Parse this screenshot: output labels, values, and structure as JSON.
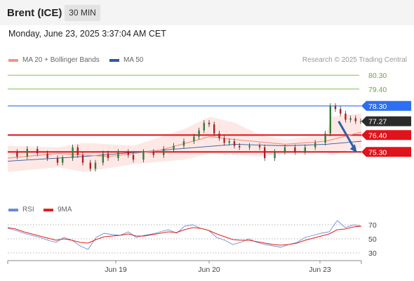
{
  "header": {
    "instrument": "Brent (ICE)",
    "timeframe": "30 MIN"
  },
  "timestamp": "Monday, June 23, 2025 3:37:04 AM CET",
  "credit": "Research © 2025 Trading Central",
  "legend": [
    {
      "label": "MA 20 + Bollinger Bands",
      "color": "#f4938a"
    },
    {
      "label": "MA 50",
      "color": "#2f5a9c"
    }
  ],
  "rsi_legend": [
    {
      "label": "RSI",
      "color": "#6a8ad8"
    },
    {
      "label": "9MA",
      "color": "#e0231b"
    }
  ],
  "chart_data": [
    {
      "type": "line",
      "title": "Brent (ICE) 30 MIN price",
      "x_ticks": [
        "Jun 19",
        "Jun 20",
        "Jun 23"
      ],
      "ylim": [
        73.0,
        81.0
      ],
      "current_price": {
        "value": "77.27",
        "color": "#2b2b2b"
      },
      "levels": [
        {
          "value": 80.3,
          "label": "80.30",
          "kind": "target",
          "color": "#7cbf4a"
        },
        {
          "value": 79.4,
          "label": "79.40",
          "kind": "target",
          "color": "#7cbf4a"
        },
        {
          "value": 78.3,
          "label": "78.30",
          "kind": "pivot",
          "color": "#2d6ff0"
        },
        {
          "value": 76.4,
          "label": "76.40",
          "kind": "support",
          "color": "#e0121b"
        },
        {
          "value": 75.3,
          "label": "75.30",
          "kind": "support",
          "color": "#e0121b"
        }
      ],
      "price_path": [
        [
          0,
          75.3
        ],
        [
          4,
          75.0
        ],
        [
          8,
          75.5
        ],
        [
          12,
          75.2
        ],
        [
          16,
          74.9
        ],
        [
          20,
          74.6
        ],
        [
          22,
          74.9
        ],
        [
          26,
          75.6
        ],
        [
          28,
          75.1
        ],
        [
          30,
          74.6
        ],
        [
          33,
          74.2
        ],
        [
          35,
          74.6
        ],
        [
          38,
          75.2
        ],
        [
          40,
          74.9
        ],
        [
          44,
          75.3
        ],
        [
          48,
          75.1
        ],
        [
          50,
          74.8
        ],
        [
          54,
          75.3
        ],
        [
          58,
          75.1
        ],
        [
          62,
          75.5
        ],
        [
          66,
          75.7
        ],
        [
          70,
          76.0
        ],
        [
          74,
          76.3
        ],
        [
          76,
          76.7
        ],
        [
          78,
          77.2
        ],
        [
          80,
          77.1
        ],
        [
          82,
          76.5
        ],
        [
          84,
          76.2
        ],
        [
          86,
          75.9
        ],
        [
          88,
          76.0
        ],
        [
          90,
          75.7
        ],
        [
          92,
          75.6
        ],
        [
          96,
          75.7
        ],
        [
          100,
          75.6
        ],
        [
          102,
          74.9
        ],
        [
          106,
          75.3
        ],
        [
          110,
          75.6
        ],
        [
          114,
          75.3
        ],
        [
          118,
          75.6
        ],
        [
          122,
          75.9
        ],
        [
          126,
          76.5
        ],
        [
          128,
          78.3
        ],
        [
          130,
          78.1
        ],
        [
          132,
          77.8
        ],
        [
          134,
          77.4
        ],
        [
          136,
          77.5
        ],
        [
          138,
          77.3
        ],
        [
          140,
          77.3
        ]
      ],
      "ma20_path": [
        [
          0,
          74.9
        ],
        [
          20,
          75.2
        ],
        [
          40,
          75.0
        ],
        [
          60,
          75.4
        ],
        [
          80,
          76.3
        ],
        [
          90,
          76.1
        ],
        [
          110,
          75.8
        ],
        [
          126,
          76.0
        ],
        [
          140,
          76.6
        ]
      ],
      "ma50_path": [
        [
          0,
          74.7
        ],
        [
          30,
          75.0
        ],
        [
          60,
          75.4
        ],
        [
          90,
          75.8
        ],
        [
          110,
          75.7
        ],
        [
          126,
          75.8
        ],
        [
          140,
          76.0
        ]
      ],
      "bollinger_upper": [
        [
          0,
          75.7
        ],
        [
          20,
          75.6
        ],
        [
          30,
          75.9
        ],
        [
          50,
          75.7
        ],
        [
          70,
          76.8
        ],
        [
          80,
          77.6
        ],
        [
          90,
          77.2
        ],
        [
          100,
          76.4
        ],
        [
          110,
          76.1
        ],
        [
          120,
          76.3
        ],
        [
          126,
          76.3
        ],
        [
          128,
          77.6
        ],
        [
          140,
          77.8
        ]
      ],
      "bollinger_lower": [
        [
          0,
          74.0
        ],
        [
          20,
          74.3
        ],
        [
          30,
          74.0
        ],
        [
          50,
          74.5
        ],
        [
          70,
          74.8
        ],
        [
          80,
          75.2
        ],
        [
          90,
          75.1
        ],
        [
          100,
          75.0
        ],
        [
          110,
          75.2
        ],
        [
          120,
          75.4
        ],
        [
          126,
          75.3
        ],
        [
          128,
          75.1
        ],
        [
          140,
          75.6
        ]
      ],
      "forecast_arrow": {
        "from": [
          131,
          77.3
        ],
        "to": [
          138,
          75.3
        ]
      }
    },
    {
      "type": "line",
      "title": "RSI",
      "ylim": [
        20,
        85
      ],
      "y_ticks": [
        "70",
        "50",
        "30"
      ],
      "series": [
        {
          "name": "RSI",
          "values": [
            65,
            62,
            58,
            55,
            52,
            48,
            45,
            52,
            48,
            40,
            35,
            52,
            58,
            56,
            55,
            60,
            52,
            55,
            57,
            60,
            63,
            58,
            68,
            70,
            65,
            62,
            52,
            48,
            42,
            45,
            50,
            45,
            42,
            40,
            38,
            42,
            45,
            52,
            55,
            58,
            60,
            76,
            66,
            70,
            68
          ]
        },
        {
          "name": "9MA",
          "values": [
            66,
            64,
            60,
            57,
            54,
            51,
            48,
            50,
            48,
            45,
            44,
            49,
            53,
            54,
            55,
            57,
            54,
            54,
            56,
            58,
            60,
            59,
            63,
            66,
            65,
            62,
            57,
            53,
            49,
            48,
            48,
            46,
            44,
            42,
            41,
            42,
            44,
            48,
            51,
            54,
            57,
            63,
            64,
            67,
            68
          ]
        }
      ]
    }
  ]
}
